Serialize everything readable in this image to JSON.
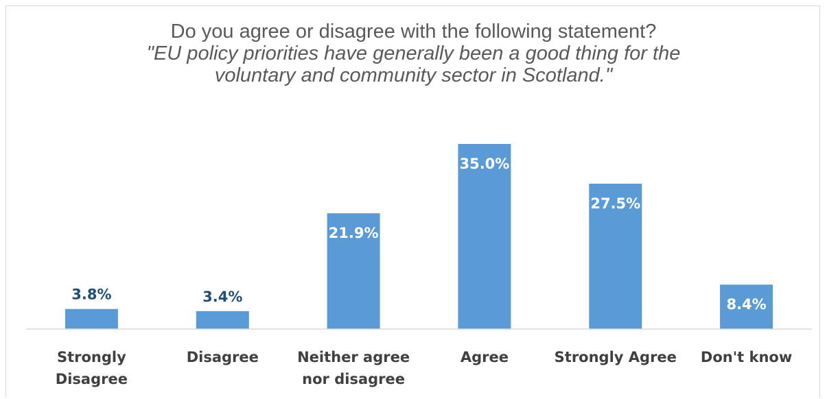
{
  "chart_data": {
    "type": "bar",
    "title": "Do you agree or disagree with the following statement?",
    "subtitle": "\"EU policy priorities have generally been a good thing for the voluntary and community sector in Scotland.\"",
    "categories": [
      [
        "Strongly",
        "Disagree"
      ],
      [
        "Disagree"
      ],
      [
        "Neither agree",
        "nor disagree"
      ],
      [
        "Agree"
      ],
      [
        "Strongly Agree"
      ],
      [
        "Don't know"
      ]
    ],
    "values": [
      3.8,
      3.4,
      21.9,
      35.0,
      27.5,
      8.4
    ],
    "value_labels": [
      "3.8%",
      "3.4%",
      "21.9%",
      "35.0%",
      "27.5%",
      "8.4%"
    ],
    "ylim": [
      0,
      40
    ],
    "grid": false,
    "legend": "none",
    "colors": {
      "bar": "#5b9bd5",
      "label_outside": "#1f4e79",
      "label_inside": "#ffffff",
      "axis": "#d9d9d9",
      "text": "#404040"
    }
  }
}
